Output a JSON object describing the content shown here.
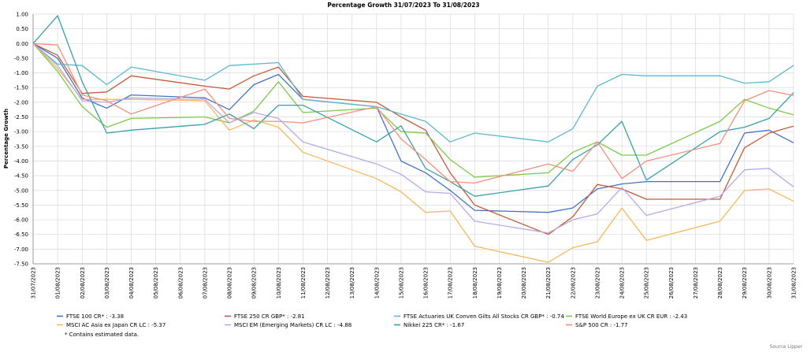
{
  "chart_data": {
    "type": "line",
    "title": "Percentage Growth 31/07/2023 To 31/08/2023",
    "xlabel": "",
    "ylabel": "Percentage Growth",
    "ylim": [
      -7.5,
      1.0
    ],
    "yticks": [
      "1.00",
      "0.50",
      "0.00",
      "-0.50",
      "-1.00",
      "-1.50",
      "-2.00",
      "-2.50",
      "-3.00",
      "-3.50",
      "-4.00",
      "-4.50",
      "-5.00",
      "-5.50",
      "-6.00",
      "-6.50",
      "-7.00",
      "-7.50"
    ],
    "x": [
      "31/07/2023",
      "01/08/2023",
      "02/08/2023",
      "03/08/2023",
      "04/08/2023",
      "05/08/2023",
      "06/08/2023",
      "07/08/2023",
      "08/08/2023",
      "09/08/2023",
      "10/08/2023",
      "11/08/2023",
      "12/08/2023",
      "13/08/2023",
      "14/08/2023",
      "15/08/2023",
      "16/08/2023",
      "17/08/2023",
      "18/08/2023",
      "19/08/2023",
      "20/08/2023",
      "21/08/2023",
      "22/08/2023",
      "23/08/2023",
      "24/08/2023",
      "25/08/2023",
      "26/08/2023",
      "27/08/2023",
      "28/08/2023",
      "29/08/2023",
      "30/08/2023",
      "31/08/2023"
    ],
    "grid": true,
    "legend_placement": "bottom",
    "series": [
      {
        "name": "FTSE 100 CR* : -3.38",
        "color": "#4472c4",
        "points": [
          [
            0,
            0
          ],
          [
            1,
            -0.5
          ],
          [
            2,
            -1.85
          ],
          [
            3,
            -2.2
          ],
          [
            4,
            -1.75
          ],
          [
            7,
            -1.85
          ],
          [
            8,
            -2.25
          ],
          [
            9,
            -1.4
          ],
          [
            10,
            -1.05
          ],
          [
            11,
            -1.9
          ],
          [
            14,
            -2.15
          ],
          [
            15,
            -4.0
          ],
          [
            16,
            -4.4
          ],
          [
            17,
            -5.0
          ],
          [
            18,
            -5.68
          ],
          [
            21,
            -5.75
          ],
          [
            22,
            -5.6
          ],
          [
            23,
            -4.95
          ],
          [
            24,
            -4.78
          ],
          [
            25,
            -4.7
          ],
          [
            28,
            -4.7
          ],
          [
            29,
            -3.05
          ],
          [
            30,
            -2.95
          ],
          [
            31,
            -3.38
          ]
        ]
      },
      {
        "name": "FTSE 250 CR GBP* : -2.81",
        "color": "#c55a3a",
        "points": [
          [
            0,
            0
          ],
          [
            1,
            -0.4
          ],
          [
            2,
            -1.7
          ],
          [
            3,
            -1.65
          ],
          [
            4,
            -1.1
          ],
          [
            7,
            -1.45
          ],
          [
            8,
            -1.55
          ],
          [
            9,
            -1.1
          ],
          [
            10,
            -0.8
          ],
          [
            11,
            -1.8
          ],
          [
            14,
            -2.0
          ],
          [
            15,
            -2.5
          ],
          [
            16,
            -2.95
          ],
          [
            17,
            -4.4
          ],
          [
            18,
            -5.5
          ],
          [
            21,
            -6.5
          ],
          [
            22,
            -5.9
          ],
          [
            23,
            -4.8
          ],
          [
            24,
            -4.95
          ],
          [
            25,
            -5.3
          ],
          [
            28,
            -5.3
          ],
          [
            29,
            -3.55
          ],
          [
            30,
            -3.05
          ],
          [
            31,
            -2.81
          ]
        ]
      },
      {
        "name": "FTSE Actuaries UK Conven Gilts All Stocks CR GBP* : -0.74",
        "color": "#5bb8cf",
        "points": [
          [
            0,
            0
          ],
          [
            1,
            -0.7
          ],
          [
            2,
            -0.75
          ],
          [
            3,
            -1.4
          ],
          [
            4,
            -0.8
          ],
          [
            7,
            -1.25
          ],
          [
            8,
            -0.75
          ],
          [
            10,
            -0.65
          ],
          [
            11,
            -1.9
          ],
          [
            14,
            -2.15
          ],
          [
            16,
            -2.65
          ],
          [
            17,
            -3.35
          ],
          [
            18,
            -3.05
          ],
          [
            21,
            -3.35
          ],
          [
            22,
            -2.9
          ],
          [
            23,
            -1.45
          ],
          [
            24,
            -1.05
          ],
          [
            25,
            -1.1
          ],
          [
            28,
            -1.1
          ],
          [
            29,
            -1.35
          ],
          [
            30,
            -1.3
          ],
          [
            31,
            -0.74
          ]
        ]
      },
      {
        "name": "FTSE World Europe ex UK CR EUR : -2.43",
        "color": "#7dc94a",
        "points": [
          [
            0,
            0
          ],
          [
            1,
            -0.95
          ],
          [
            2,
            -2.15
          ],
          [
            3,
            -2.85
          ],
          [
            4,
            -2.55
          ],
          [
            7,
            -2.5
          ],
          [
            8,
            -2.7
          ],
          [
            9,
            -2.3
          ],
          [
            10,
            -1.3
          ],
          [
            11,
            -2.35
          ],
          [
            14,
            -2.2
          ],
          [
            15,
            -3.0
          ],
          [
            16,
            -3.05
          ],
          [
            17,
            -3.95
          ],
          [
            18,
            -4.55
          ],
          [
            21,
            -4.4
          ],
          [
            22,
            -3.7
          ],
          [
            23,
            -3.35
          ],
          [
            24,
            -3.8
          ],
          [
            25,
            -3.8
          ],
          [
            28,
            -2.65
          ],
          [
            29,
            -1.9
          ],
          [
            30,
            -2.2
          ],
          [
            31,
            -2.43
          ]
        ]
      },
      {
        "name": "MSCI AC Asia ex Japan CR LC : -5.37",
        "color": "#f5b85c",
        "points": [
          [
            0,
            0
          ],
          [
            1,
            -0.85
          ],
          [
            2,
            -1.9
          ],
          [
            3,
            -1.9
          ],
          [
            4,
            -1.9
          ],
          [
            7,
            -1.95
          ],
          [
            8,
            -2.95
          ],
          [
            9,
            -2.6
          ],
          [
            10,
            -2.85
          ],
          [
            11,
            -3.7
          ],
          [
            14,
            -4.6
          ],
          [
            15,
            -5.05
          ],
          [
            16,
            -5.75
          ],
          [
            17,
            -5.7
          ],
          [
            18,
            -6.9
          ],
          [
            21,
            -7.45
          ],
          [
            22,
            -6.95
          ],
          [
            23,
            -6.75
          ],
          [
            24,
            -5.6
          ],
          [
            25,
            -6.7
          ],
          [
            28,
            -6.05
          ],
          [
            29,
            -5.0
          ],
          [
            30,
            -4.95
          ],
          [
            31,
            -5.37
          ]
        ]
      },
      {
        "name": "MSCI EM (Emerging Markets) CR LC : -4.88",
        "color": "#b9a9e6",
        "points": [
          [
            0,
            0
          ],
          [
            1,
            -0.75
          ],
          [
            2,
            -1.95
          ],
          [
            3,
            -2.0
          ],
          [
            4,
            -1.85
          ],
          [
            7,
            -1.9
          ],
          [
            8,
            -2.7
          ],
          [
            9,
            -2.35
          ],
          [
            10,
            -2.55
          ],
          [
            11,
            -3.35
          ],
          [
            14,
            -4.1
          ],
          [
            15,
            -4.45
          ],
          [
            16,
            -5.05
          ],
          [
            17,
            -5.1
          ],
          [
            18,
            -6.05
          ],
          [
            21,
            -6.45
          ],
          [
            22,
            -6.0
          ],
          [
            23,
            -5.8
          ],
          [
            24,
            -4.9
          ],
          [
            25,
            -5.85
          ],
          [
            28,
            -5.2
          ],
          [
            29,
            -4.3
          ],
          [
            30,
            -4.25
          ],
          [
            31,
            -4.88
          ]
        ]
      },
      {
        "name": "Nikkei 225 CR* : -1.67",
        "color": "#3aa0a8",
        "points": [
          [
            0,
            0
          ],
          [
            1,
            0.95
          ],
          [
            2,
            -1.3
          ],
          [
            3,
            -3.05
          ],
          [
            4,
            -2.95
          ],
          [
            7,
            -2.75
          ],
          [
            8,
            -2.4
          ],
          [
            9,
            -2.9
          ],
          [
            10,
            -2.1
          ],
          [
            11,
            -2.1
          ],
          [
            14,
            -3.35
          ],
          [
            15,
            -2.8
          ],
          [
            16,
            -4.25
          ],
          [
            17,
            -4.7
          ],
          [
            18,
            -5.2
          ],
          [
            21,
            -4.85
          ],
          [
            22,
            -3.95
          ],
          [
            23,
            -3.45
          ],
          [
            24,
            -2.65
          ],
          [
            25,
            -4.65
          ],
          [
            28,
            -3.0
          ],
          [
            29,
            -2.85
          ],
          [
            30,
            -2.55
          ],
          [
            31,
            -1.67
          ]
        ]
      },
      {
        "name": "S&P 500 CR : -1.77",
        "color": "#f4907a",
        "points": [
          [
            0,
            0
          ],
          [
            1,
            -0.05
          ],
          [
            2,
            -1.75
          ],
          [
            3,
            -1.95
          ],
          [
            4,
            -2.4
          ],
          [
            7,
            -1.55
          ],
          [
            8,
            -2.55
          ],
          [
            9,
            -2.65
          ],
          [
            10,
            -2.65
          ],
          [
            11,
            -2.7
          ],
          [
            14,
            -2.15
          ],
          [
            15,
            -3.25
          ],
          [
            16,
            -3.95
          ],
          [
            17,
            -4.7
          ],
          [
            18,
            -4.75
          ],
          [
            21,
            -4.1
          ],
          [
            22,
            -4.35
          ],
          [
            23,
            -3.35
          ],
          [
            24,
            -4.6
          ],
          [
            25,
            -4.0
          ],
          [
            28,
            -3.4
          ],
          [
            29,
            -1.95
          ],
          [
            30,
            -1.6
          ],
          [
            31,
            -1.77
          ]
        ]
      }
    ],
    "footnote": "* Contains estimated data.",
    "source": "Source Lipper"
  }
}
